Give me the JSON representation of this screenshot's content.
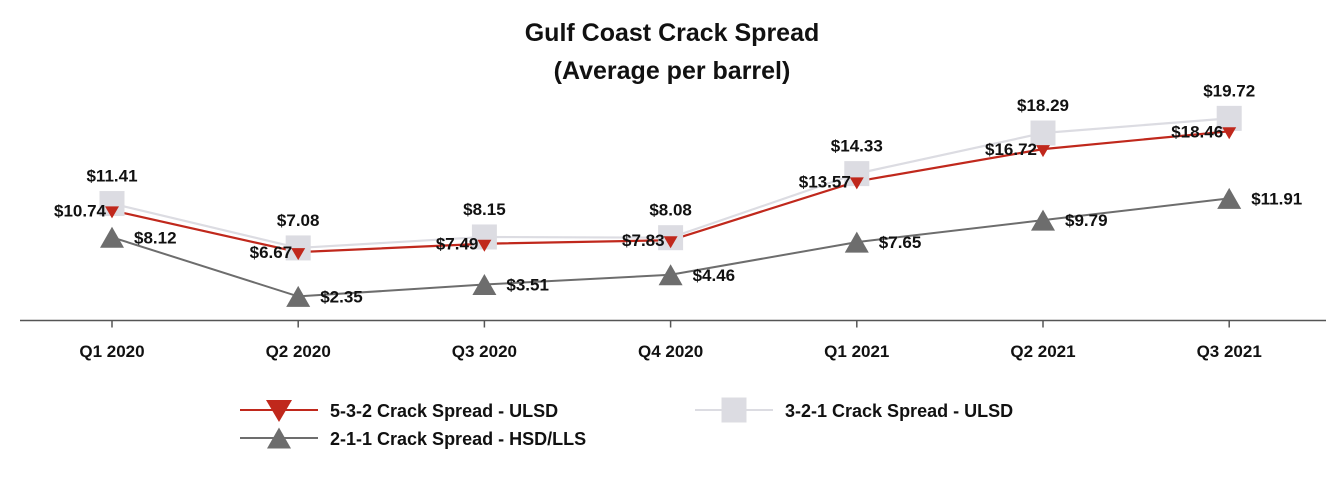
{
  "chart_data": {
    "type": "line",
    "title": "Gulf Coast Crack Spread",
    "subtitle": "(Average per barrel)",
    "xlabel": "",
    "ylabel": "",
    "categories": [
      "Q1 2020",
      "Q2 2020",
      "Q3 2020",
      "Q4 2020",
      "Q1 2021",
      "Q2 2021",
      "Q3 2021"
    ],
    "ylim": [
      0,
      22
    ],
    "grid": false,
    "legend_position": "bottom",
    "series": [
      {
        "name": "5-3-2 Crack Spread - ULSD",
        "values": [
          10.74,
          6.67,
          7.49,
          7.83,
          13.57,
          16.72,
          18.46
        ],
        "labels": [
          "$10.74",
          "$6.67",
          "$7.49",
          "$7.83",
          "$13.57",
          "$16.72",
          "$18.46"
        ],
        "color": "#c0281c",
        "marker": "triangle-down"
      },
      {
        "name": "3-2-1 Crack Spread - ULSD",
        "values": [
          11.41,
          7.08,
          8.15,
          8.08,
          14.33,
          18.29,
          19.72
        ],
        "labels": [
          "$11.41",
          "$7.08",
          "$8.15",
          "$8.08",
          "$14.33",
          "$18.29",
          "$19.72"
        ],
        "color": "#dcdce2",
        "marker": "square"
      },
      {
        "name": "2-1-1 Crack Spread - HSD/LLS",
        "values": [
          8.12,
          2.35,
          3.51,
          4.46,
          7.65,
          9.79,
          11.91
        ],
        "labels": [
          "$8.12",
          "$2.35",
          "$3.51",
          "$4.46",
          "$7.65",
          "$9.79",
          "$11.91"
        ],
        "color": "#6d6d6d",
        "marker": "triangle-up"
      }
    ]
  }
}
